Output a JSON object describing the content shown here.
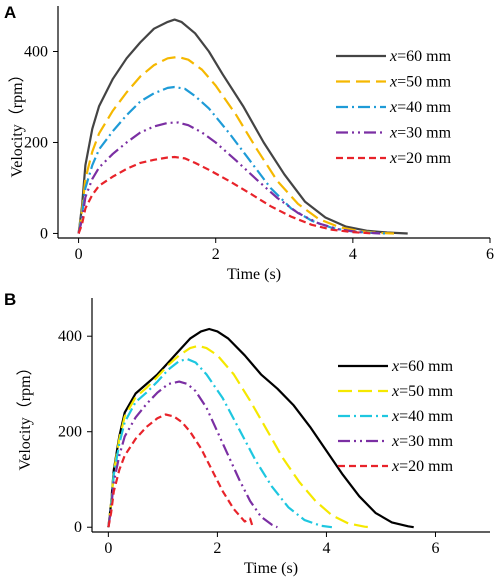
{
  "chart_data": [
    {
      "type": "line",
      "panel_label": "A",
      "xlabel": "Time (s)",
      "ylabel": "Velocity（rpm）",
      "xlim": [
        -0.3,
        6
      ],
      "ylim": [
        -10,
        500
      ],
      "xticks": [
        0,
        2,
        4,
        6
      ],
      "yticks": [
        0,
        200,
        400
      ],
      "legend_position": "right",
      "series": [
        {
          "name": "x=60 mm",
          "var": "x",
          "rest": "=60 mm",
          "color": "#444444",
          "dash": "",
          "x": [
            0,
            0.05,
            0.1,
            0.2,
            0.3,
            0.5,
            0.7,
            0.9,
            1.1,
            1.3,
            1.4,
            1.5,
            1.7,
            1.9,
            2.1,
            2.4,
            2.7,
            3.0,
            3.3,
            3.6,
            3.9,
            4.2,
            4.5,
            4.8
          ],
          "y": [
            0,
            60,
            150,
            230,
            280,
            340,
            385,
            420,
            450,
            465,
            470,
            465,
            440,
            400,
            350,
            280,
            200,
            130,
            70,
            35,
            15,
            6,
            2,
            0
          ]
        },
        {
          "name": "x=50 mm",
          "var": "x",
          "rest": "=50 mm",
          "color": "#f5b800",
          "dash": "14,6",
          "x": [
            0,
            0.05,
            0.1,
            0.2,
            0.3,
            0.5,
            0.7,
            0.9,
            1.1,
            1.3,
            1.45,
            1.6,
            1.8,
            2.0,
            2.3,
            2.6,
            2.9,
            3.2,
            3.5,
            3.8,
            4.1,
            4.4,
            4.6
          ],
          "y": [
            0,
            50,
            120,
            180,
            220,
            270,
            310,
            345,
            370,
            385,
            388,
            382,
            360,
            325,
            260,
            185,
            115,
            65,
            32,
            14,
            5,
            1,
            0
          ]
        },
        {
          "name": "x=40 mm",
          "var": "x",
          "rest": "=40 mm",
          "color": "#1e9bd7",
          "dash": "12,4,2,4",
          "x": [
            0,
            0.05,
            0.1,
            0.2,
            0.3,
            0.5,
            0.7,
            0.9,
            1.1,
            1.3,
            1.4,
            1.55,
            1.7,
            1.9,
            2.2,
            2.5,
            2.8,
            3.1,
            3.4,
            3.7,
            4.0,
            4.3,
            4.5
          ],
          "y": [
            0,
            40,
            100,
            150,
            185,
            225,
            260,
            290,
            308,
            320,
            322,
            318,
            302,
            275,
            220,
            160,
            100,
            55,
            28,
            12,
            4,
            1,
            0
          ]
        },
        {
          "name": "x=30 mm",
          "var": "x",
          "rest": "=30 mm",
          "color": "#7b2fa3",
          "dash": "12,4,2,4,2,4",
          "x": [
            0,
            0.05,
            0.1,
            0.2,
            0.3,
            0.5,
            0.7,
            0.9,
            1.1,
            1.3,
            1.45,
            1.6,
            1.8,
            2.0,
            2.3,
            2.6,
            2.9,
            3.2,
            3.5,
            3.8,
            4.1,
            4.4
          ],
          "y": [
            0,
            30,
            80,
            120,
            145,
            175,
            200,
            222,
            235,
            243,
            244,
            238,
            222,
            200,
            160,
            118,
            78,
            45,
            22,
            9,
            3,
            0
          ]
        },
        {
          "name": "x=20 mm",
          "var": "x",
          "rest": "=20 mm",
          "color": "#e8232a",
          "dash": "7,4",
          "x": [
            0,
            0.05,
            0.1,
            0.2,
            0.3,
            0.5,
            0.7,
            0.9,
            1.1,
            1.3,
            1.4,
            1.55,
            1.7,
            1.9,
            2.2,
            2.5,
            2.8,
            3.1,
            3.4,
            3.7,
            4.0,
            4.3
          ],
          "y": [
            0,
            20,
            55,
            85,
            105,
            125,
            142,
            155,
            162,
            167,
            168,
            165,
            155,
            140,
            115,
            88,
            60,
            37,
            19,
            8,
            3,
            0
          ]
        }
      ]
    },
    {
      "type": "line",
      "panel_label": "B",
      "xlabel": "Time (s)",
      "ylabel": "Velocity（rpm）",
      "xlim": [
        -0.3,
        7
      ],
      "ylim": [
        -10,
        480
      ],
      "xticks": [
        0,
        2,
        4,
        6
      ],
      "yticks": [
        0,
        200,
        400
      ],
      "legend_position": "right",
      "series": [
        {
          "name": "x=60 mm",
          "var": "x",
          "rest": "=60 mm",
          "color": "#000000",
          "dash": "",
          "x": [
            0,
            0.05,
            0.1,
            0.2,
            0.3,
            0.5,
            0.7,
            0.9,
            1.1,
            1.3,
            1.5,
            1.7,
            1.85,
            2.0,
            2.2,
            2.5,
            2.8,
            3.1,
            3.4,
            3.7,
            4.0,
            4.3,
            4.6,
            4.9,
            5.2,
            5.5,
            5.6
          ],
          "y": [
            0,
            50,
            120,
            190,
            240,
            280,
            300,
            320,
            345,
            370,
            395,
            410,
            415,
            410,
            395,
            360,
            320,
            290,
            255,
            210,
            160,
            110,
            65,
            30,
            10,
            2,
            0
          ]
        },
        {
          "name": "x=50 mm",
          "var": "x",
          "rest": "=50 mm",
          "color": "#f5e800",
          "dash": "14,6",
          "x": [
            0,
            0.05,
            0.1,
            0.2,
            0.3,
            0.5,
            0.7,
            0.9,
            1.1,
            1.3,
            1.5,
            1.65,
            1.8,
            2.0,
            2.3,
            2.6,
            2.9,
            3.2,
            3.5,
            3.8,
            4.1,
            4.4,
            4.7,
            4.8
          ],
          "y": [
            0,
            50,
            115,
            185,
            232,
            272,
            292,
            315,
            340,
            360,
            375,
            380,
            375,
            360,
            320,
            265,
            205,
            145,
            95,
            55,
            25,
            8,
            1,
            0
          ]
        },
        {
          "name": "x=40 mm",
          "var": "x",
          "rest": "=40 mm",
          "color": "#1ec7e0",
          "dash": "12,4,2,4",
          "x": [
            0,
            0.05,
            0.1,
            0.2,
            0.3,
            0.5,
            0.7,
            0.9,
            1.1,
            1.3,
            1.45,
            1.6,
            1.8,
            2.1,
            2.4,
            2.7,
            3.0,
            3.3,
            3.6,
            3.9,
            4.1
          ],
          "y": [
            0,
            45,
            110,
            175,
            220,
            262,
            282,
            305,
            330,
            348,
            352,
            345,
            320,
            270,
            205,
            140,
            85,
            42,
            15,
            3,
            0
          ]
        },
        {
          "name": "x=30 mm",
          "var": "x",
          "rest": "=30 mm",
          "color": "#7b2fa3",
          "dash": "12,4,2,4,2,4",
          "x": [
            0,
            0.05,
            0.1,
            0.2,
            0.3,
            0.5,
            0.7,
            0.9,
            1.1,
            1.3,
            1.45,
            1.6,
            1.8,
            2.0,
            2.2,
            2.4,
            2.6,
            2.8,
            3.0,
            3.1
          ],
          "y": [
            0,
            40,
            95,
            150,
            190,
            230,
            258,
            282,
            300,
            305,
            300,
            285,
            250,
            200,
            150,
            100,
            55,
            22,
            5,
            0
          ]
        },
        {
          "name": "x=20 mm",
          "var": "x",
          "rest": "=20 mm",
          "color": "#e8232a",
          "dash": "7,4",
          "x": [
            0,
            0.05,
            0.1,
            0.2,
            0.3,
            0.5,
            0.7,
            0.9,
            1.05,
            1.2,
            1.35,
            1.5,
            1.7,
            1.9,
            2.1,
            2.3,
            2.5,
            2.6,
            2.65
          ],
          "y": [
            0,
            30,
            75,
            120,
            150,
            185,
            210,
            228,
            236,
            232,
            220,
            200,
            165,
            120,
            75,
            38,
            12,
            18,
            0
          ]
        }
      ]
    }
  ]
}
